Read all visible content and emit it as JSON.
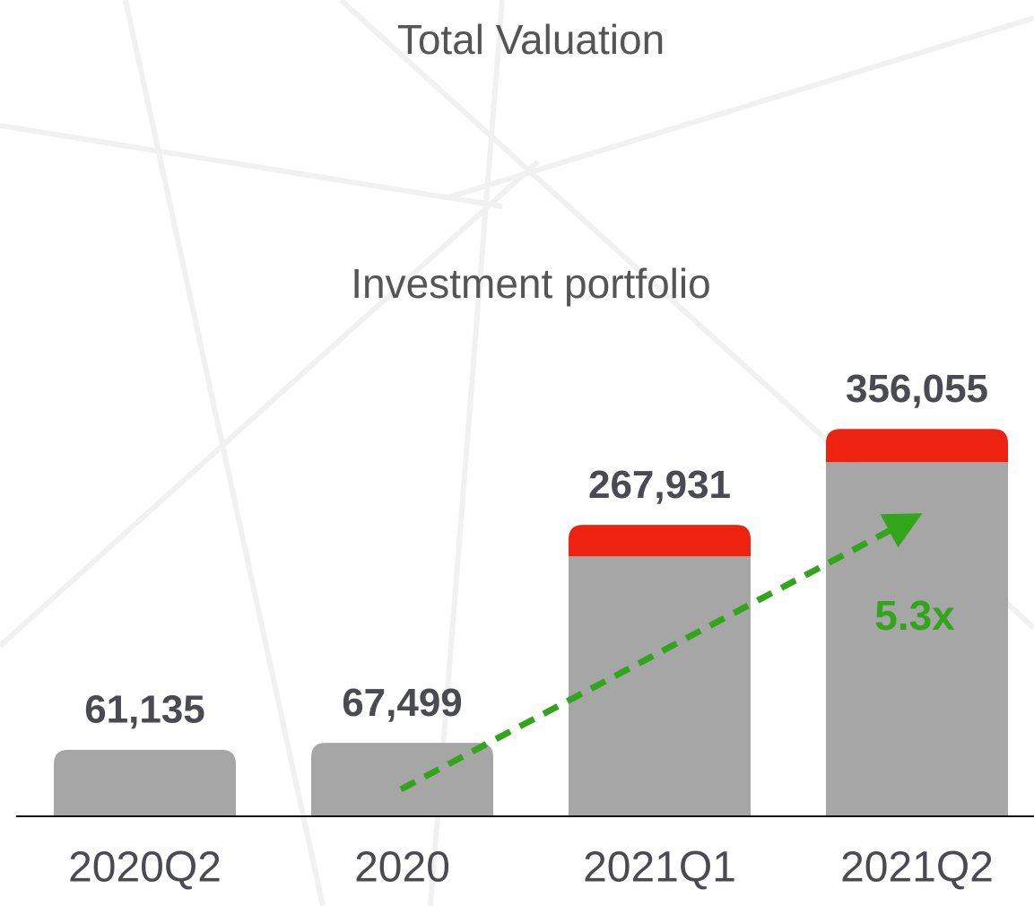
{
  "chart_data": {
    "type": "stacked_bar",
    "title": "Total Valuation",
    "subtitle": "Investment portfolio",
    "categories": [
      "2020Q2",
      "2020",
      "2021Q1",
      "2021Q2"
    ],
    "series": [
      {
        "color": "#a6a6a6",
        "values": [
          61135,
          67499,
          238931,
          325555
        ]
      },
      {
        "color": "#ee2211",
        "values": [
          null,
          null,
          29000,
          30500
        ]
      }
    ],
    "totals": [
      61135,
      67499,
      267931,
      356055
    ],
    "total_labels": [
      "61,135",
      "67,499",
      "267,931",
      "356,055"
    ],
    "annotation": "5.3x",
    "ylim": [
      0,
      400000
    ]
  }
}
